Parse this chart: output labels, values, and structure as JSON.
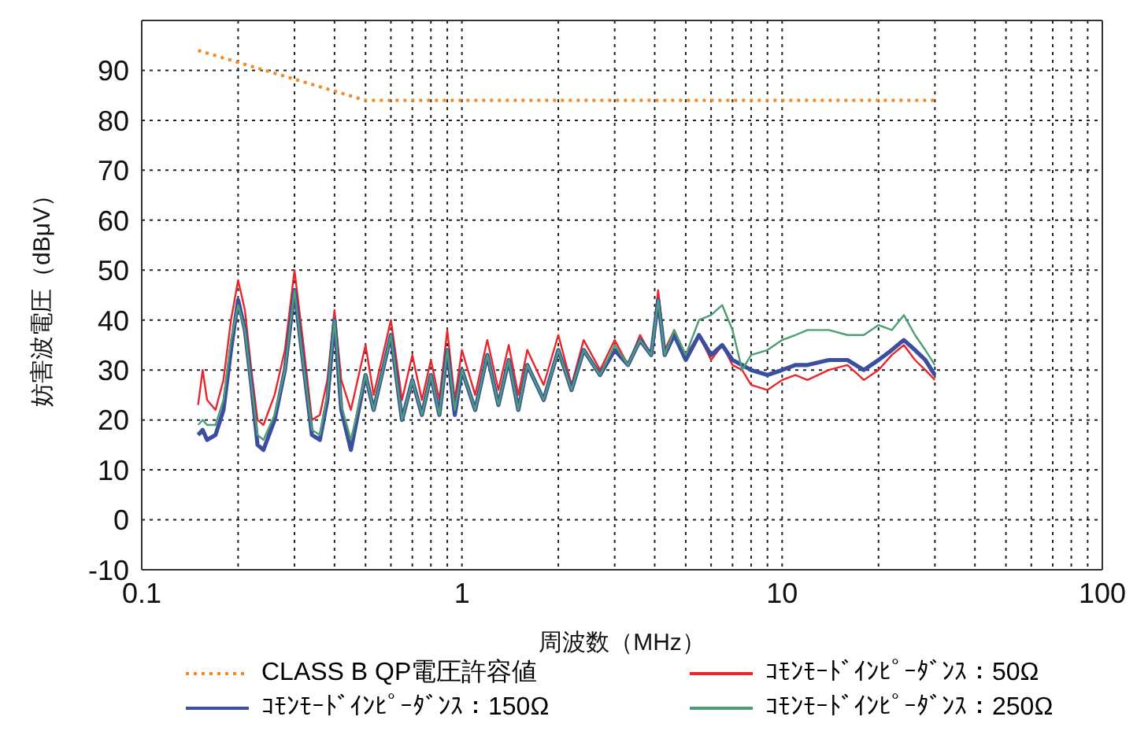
{
  "chart_data": {
    "type": "line",
    "xlabel": "周波数（MHz）",
    "ylabel": "妨害波電圧（dBμV）",
    "log": "x",
    "grid": true,
    "legend": "bottom",
    "xlim": [
      0.1,
      100
    ],
    "xticks": [
      0.1,
      {
        "value": 0.2,
        "label": null
      },
      {
        "value": 0.3,
        "label": null
      },
      {
        "value": 0.4,
        "label": null
      },
      {
        "value": 0.5,
        "label": null
      },
      {
        "value": 0.6,
        "label": null
      },
      {
        "value": 0.7,
        "label": null
      },
      {
        "value": 0.8,
        "label": null
      },
      {
        "value": 0.9,
        "label": null
      },
      1,
      {
        "value": 2,
        "label": null
      },
      {
        "value": 3,
        "label": null
      },
      {
        "value": 4,
        "label": null
      },
      {
        "value": 5,
        "label": null
      },
      {
        "value": 6,
        "label": null
      },
      {
        "value": 7,
        "label": null
      },
      {
        "value": 8,
        "label": null
      },
      {
        "value": 9,
        "label": null
      },
      10,
      {
        "value": 20,
        "label": null
      },
      {
        "value": 30,
        "label": null
      },
      {
        "value": 40,
        "label": null
      },
      {
        "value": 50,
        "label": null
      },
      {
        "value": 60,
        "label": null
      },
      {
        "value": 70,
        "label": null
      },
      {
        "value": 80,
        "label": null
      },
      {
        "value": 90,
        "label": null
      },
      100
    ],
    "ylim": [
      -10,
      100
    ],
    "yticks": [
      -10,
      0,
      10,
      20,
      30,
      40,
      50,
      60,
      70,
      80,
      90
    ],
    "x": [
      0.15,
      0.155,
      0.16,
      0.17,
      0.18,
      0.19,
      0.2,
      0.21,
      0.22,
      0.23,
      0.24,
      0.26,
      0.28,
      0.3,
      0.32,
      0.34,
      0.36,
      0.38,
      0.4,
      0.42,
      0.45,
      0.5,
      0.53,
      0.6,
      0.65,
      0.7,
      0.75,
      0.8,
      0.85,
      0.9,
      0.95,
      1.0,
      1.1,
      1.2,
      1.3,
      1.4,
      1.5,
      1.6,
      1.8,
      2.0,
      2.2,
      2.4,
      2.7,
      3.0,
      3.3,
      3.6,
      3.9,
      4.1,
      4.3,
      4.6,
      5.0,
      5.5,
      6.0,
      6.5,
      7.0,
      7.5,
      8.0,
      9.0,
      10,
      11,
      12,
      14,
      16,
      18,
      20,
      22,
      24,
      26,
      28,
      30
    ],
    "series": [
      {
        "name": "CLASS B QP電圧許容値",
        "color": "#f08a24",
        "line_style": "dotted",
        "x": [
          0.15,
          0.5,
          30
        ],
        "values": [
          94,
          84,
          84
        ]
      },
      {
        "name": "ｺﾓﾝﾓｰﾄﾞｲﾝﾋﾟｰﾀﾞﾝｽ：50Ω",
        "color": "#e8262b",
        "line_style": "solid",
        "values": [
          23,
          30,
          24,
          22,
          28,
          40,
          48,
          42,
          30,
          20,
          19,
          25,
          34,
          50,
          35,
          20,
          21,
          28,
          42,
          28,
          22,
          35,
          25,
          40,
          24,
          33,
          24,
          32,
          24,
          38,
          24,
          34,
          25,
          36,
          26,
          35,
          25,
          34,
          27,
          37,
          27,
          36,
          30,
          36,
          31,
          37,
          33,
          46,
          34,
          38,
          33,
          37,
          32,
          35,
          31,
          30,
          27,
          26,
          28,
          29,
          28,
          30,
          31,
          28,
          30,
          33,
          35,
          32,
          30,
          28
        ]
      },
      {
        "name": "ｺﾓﾝﾓｰﾄﾞｲﾝﾋﾟｰﾀﾞﾝｽ：150Ω",
        "color": "#3b4ea0",
        "line_style": "solid",
        "values": [
          17,
          18,
          16,
          17,
          22,
          34,
          44,
          38,
          27,
          15,
          14,
          20,
          30,
          46,
          31,
          17,
          16,
          24,
          40,
          22,
          14,
          29,
          22,
          37,
          20,
          28,
          21,
          29,
          21,
          34,
          21,
          30,
          22,
          33,
          23,
          32,
          22,
          31,
          24,
          34,
          26,
          34,
          29,
          34,
          31,
          36,
          33,
          44,
          33,
          37,
          32,
          37,
          33,
          35,
          32,
          31,
          30,
          29,
          30,
          31,
          31,
          32,
          32,
          30,
          32,
          34,
          36,
          34,
          32,
          29
        ]
      },
      {
        "name": "ｺﾓﾝﾓｰﾄﾞｲﾝﾋﾟｰﾀﾞﾝｽ：250Ω",
        "color": "#4e9e74",
        "line_style": "solid",
        "values": [
          19,
          20,
          19,
          19,
          24,
          36,
          43,
          38,
          27,
          17,
          16,
          21,
          30,
          46,
          31,
          18,
          17,
          25,
          40,
          23,
          16,
          29,
          22,
          37,
          20,
          28,
          21,
          29,
          21,
          34,
          22,
          30,
          22,
          33,
          23,
          32,
          22,
          31,
          24,
          34,
          26,
          34,
          29,
          35,
          31,
          36,
          33,
          44,
          33,
          38,
          33,
          40,
          41,
          43,
          38,
          30,
          33,
          34,
          36,
          37,
          38,
          38,
          37,
          37,
          39,
          38,
          41,
          37,
          34,
          31
        ]
      }
    ]
  }
}
